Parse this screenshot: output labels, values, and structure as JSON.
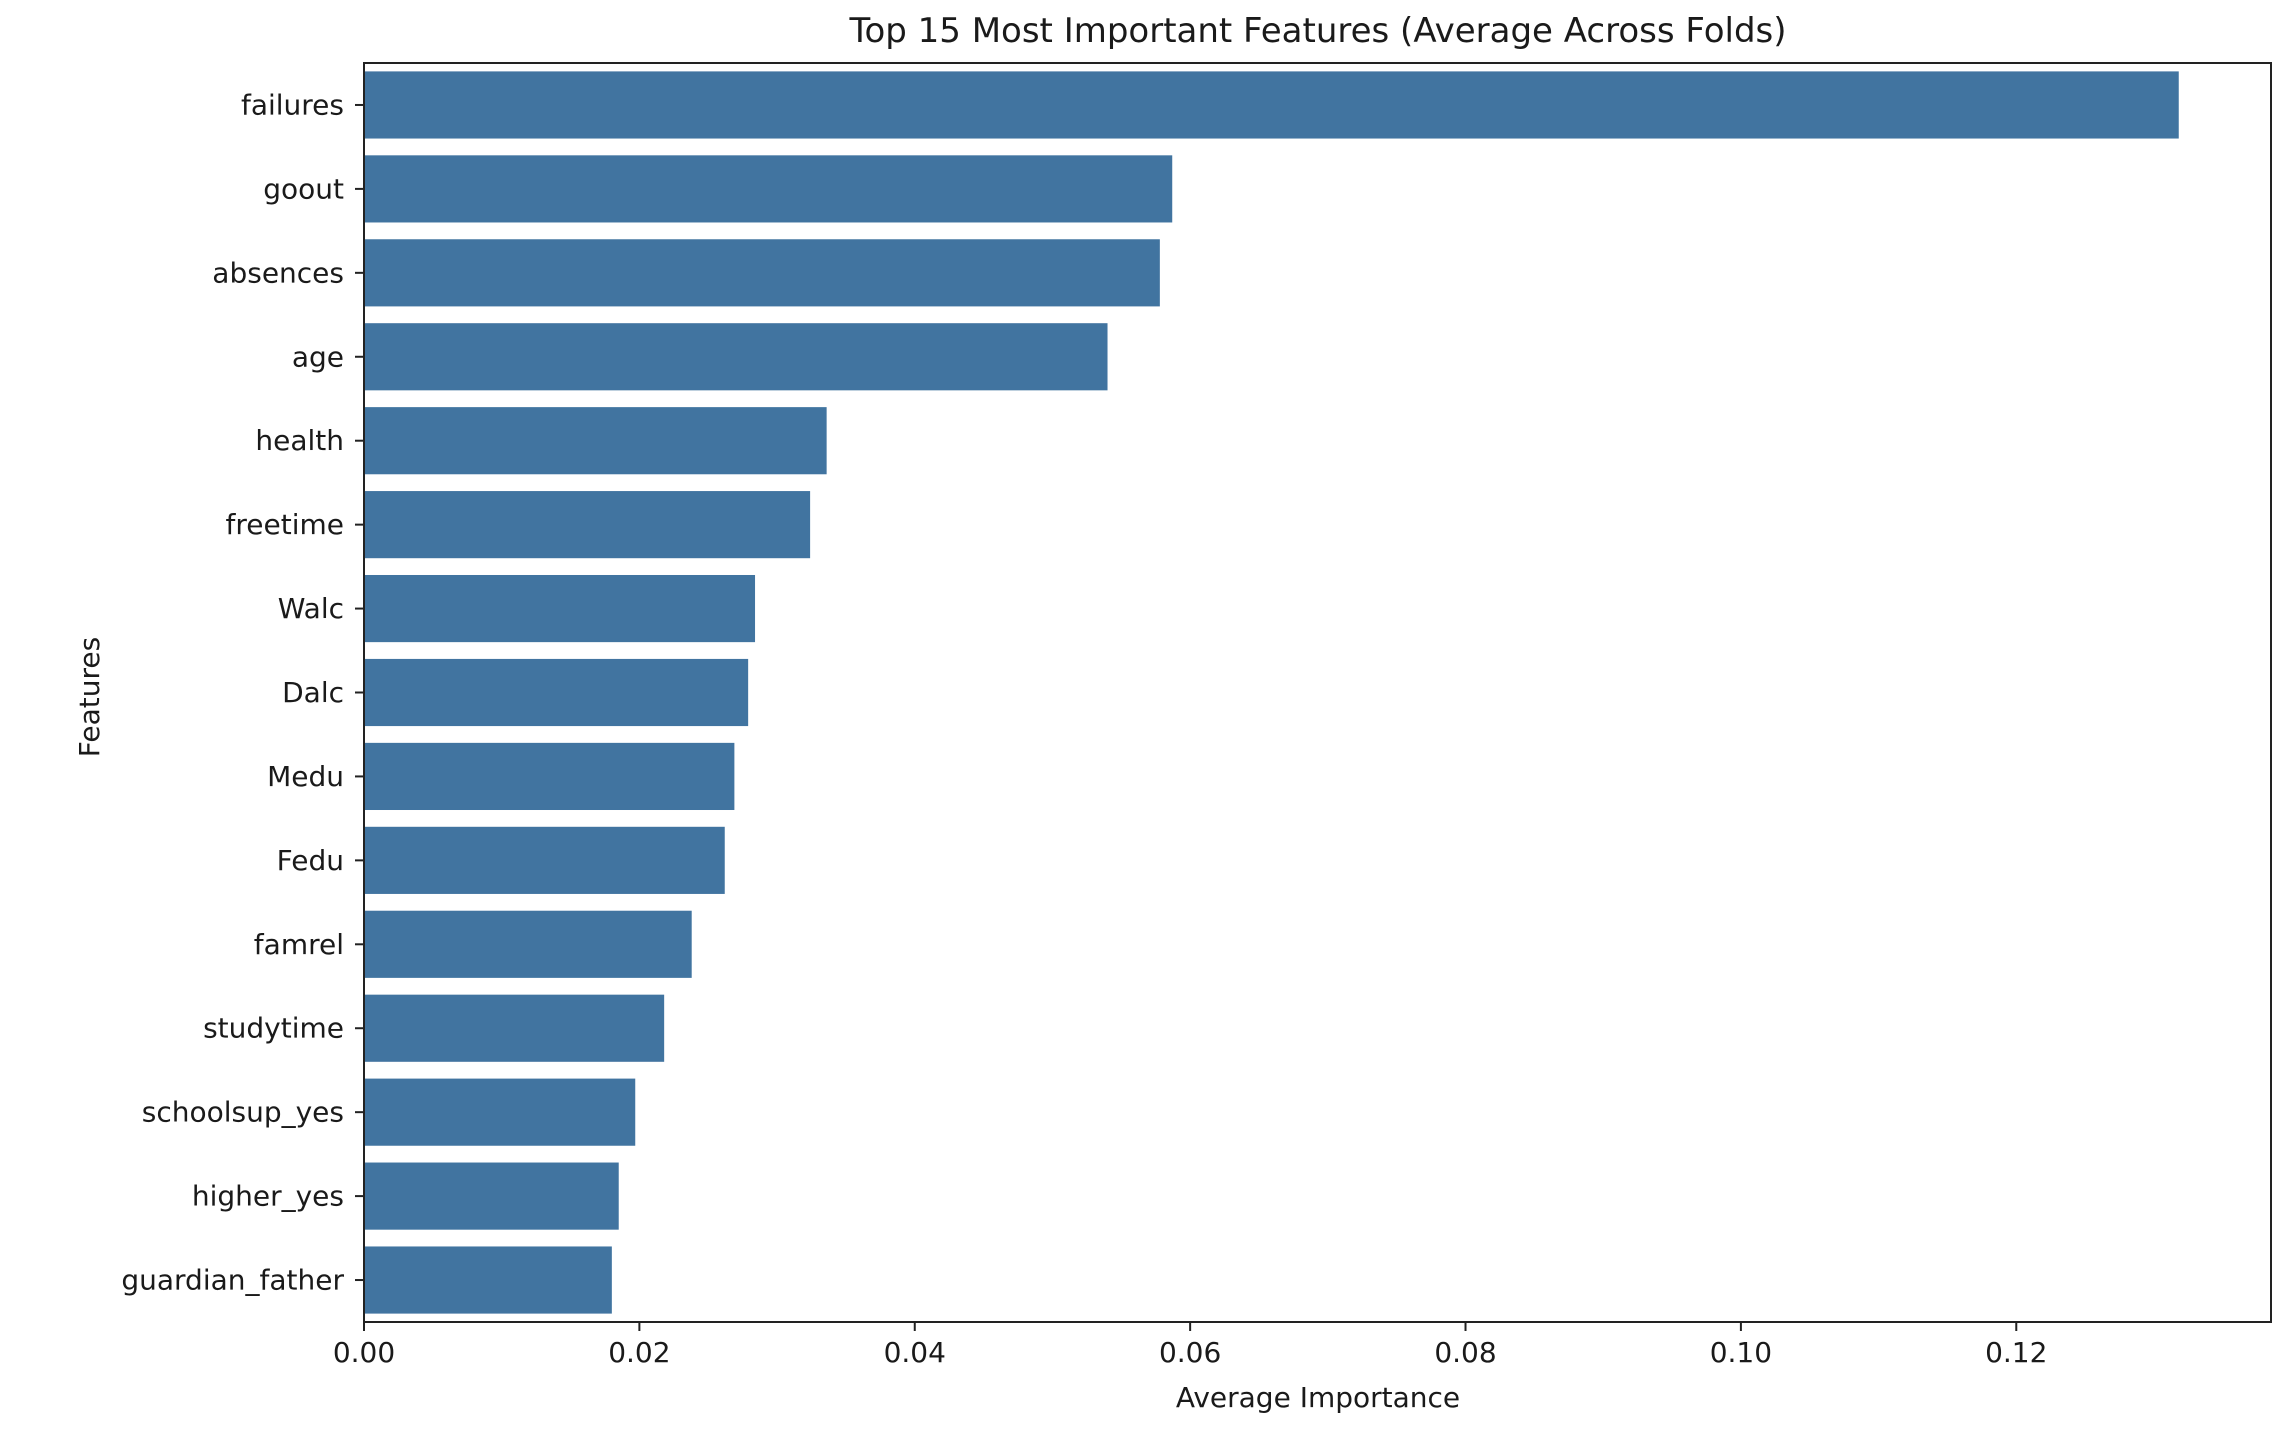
{
  "chart_data": {
    "type": "bar",
    "orientation": "horizontal",
    "title": "Top 15 Most Important Features (Average Across Folds)",
    "xlabel": "Average Importance",
    "ylabel": "Features",
    "xlim": [
      0,
      0.1385
    ],
    "xticks": [
      0.0,
      0.02,
      0.04,
      0.06,
      0.08,
      0.1,
      0.12
    ],
    "xtick_labels": [
      "0.00",
      "0.02",
      "0.04",
      "0.06",
      "0.08",
      "0.10",
      "0.12"
    ],
    "grid": false,
    "legend": "none",
    "bar_color": "#4174a0",
    "categories": [
      "failures",
      "goout",
      "absences",
      "age",
      "health",
      "freetime",
      "Walc",
      "Dalc",
      "Medu",
      "Fedu",
      "famrel",
      "studytime",
      "schoolsup_yes",
      "higher_yes",
      "guardian_father"
    ],
    "values": [
      0.1318,
      0.0587,
      0.0578,
      0.054,
      0.0336,
      0.0324,
      0.0284,
      0.0279,
      0.0269,
      0.0262,
      0.0238,
      0.0218,
      0.0197,
      0.0185,
      0.018
    ]
  }
}
